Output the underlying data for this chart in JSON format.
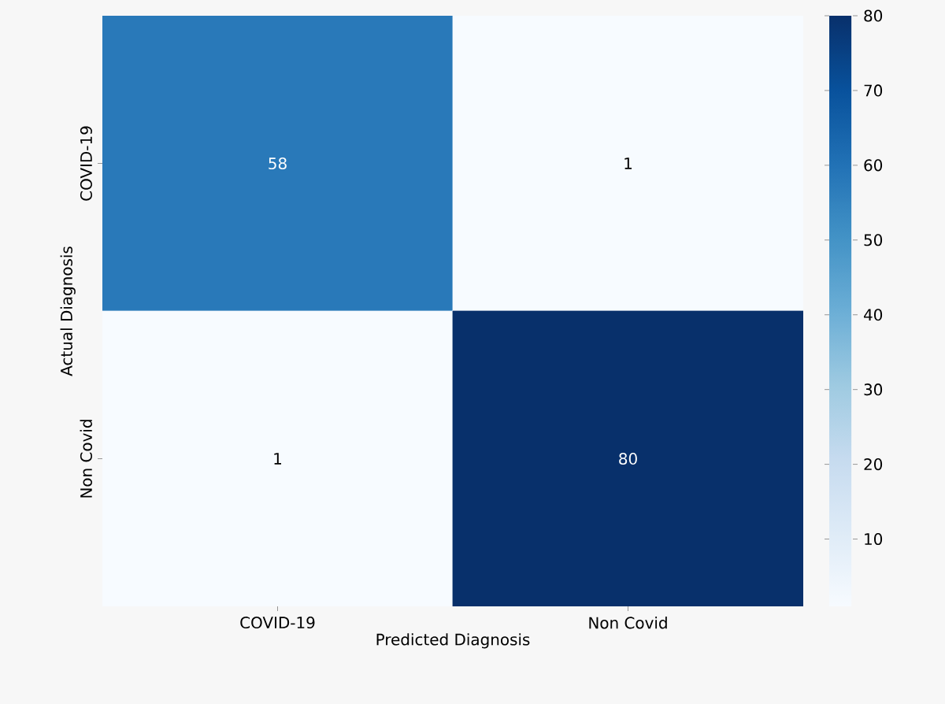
{
  "chart_data": {
    "type": "heatmap",
    "xlabel": "Predicted Diagnosis",
    "ylabel": "Actual Diagnosis",
    "categories": [
      "COVID-19",
      "Non Covid"
    ],
    "y_categories": [
      "COVID-19",
      "Non Covid"
    ],
    "cells": [
      [
        58,
        1
      ],
      [
        1,
        80
      ]
    ],
    "cell_labels": [
      [
        "58",
        "1"
      ],
      [
        "1",
        "80"
      ]
    ],
    "clim": [
      1,
      80
    ],
    "cticks": [
      10,
      20,
      30,
      40,
      50,
      60,
      70,
      80
    ]
  }
}
